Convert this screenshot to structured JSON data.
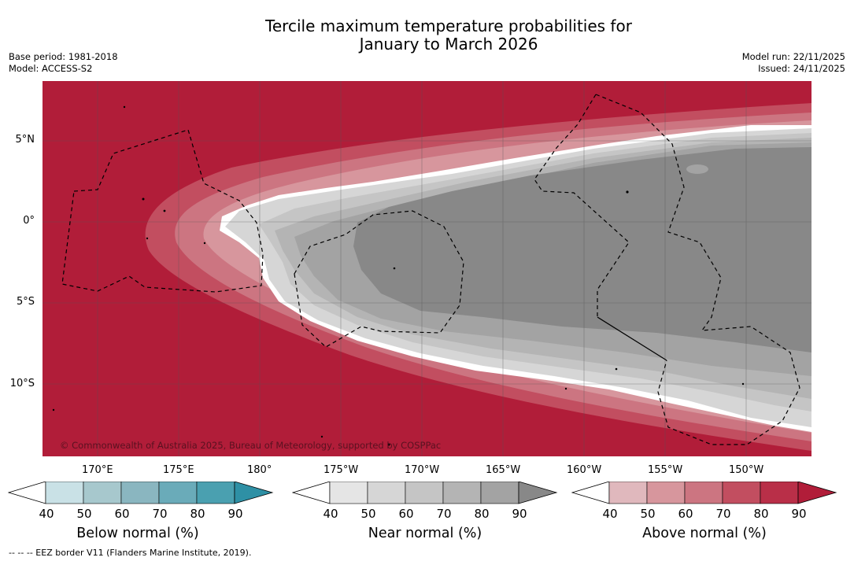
{
  "title": {
    "line1": "Tercile maximum temperature probabilities for",
    "line2": "January to March 2026"
  },
  "meta_left": {
    "base_period": "Base period: 1981-2018",
    "model": "Model: ACCESS-S2"
  },
  "meta_right": {
    "model_run": "Model run: 22/11/2025",
    "issued": "Issued: 24/11/2025"
  },
  "map": {
    "copyright": "© Commonwealth of Australia 2025, Bureau of Meteorology, supported by COSPPac",
    "lat_labels": [
      "5°N",
      "0°",
      "5°S",
      "10°S"
    ],
    "lon_labels": [
      "170°E",
      "175°E",
      "180°",
      "175°W",
      "170°W",
      "165°W",
      "160°W",
      "155°W",
      "150°W"
    ],
    "colors": {
      "above_90": "#b11d39",
      "near_80_90": "#888888",
      "near_70_80": "#a3a3a3",
      "near_60_70": "#b4b4b4",
      "near_50_60": "#c5c5c5",
      "near_40_50": "#d6d6d6"
    }
  },
  "colorbars": {
    "ticks": [
      "40",
      "50",
      "60",
      "70",
      "80",
      "90"
    ],
    "below": {
      "title": "Below normal (%)",
      "colors": [
        "#c9e1e6",
        "#a7c8cd",
        "#8ab6c0",
        "#6aabb9",
        "#4aa0b0",
        "#2e90a5"
      ]
    },
    "near": {
      "title": "Near normal (%)",
      "colors": [
        "#e5e5e5",
        "#d6d6d6",
        "#c5c5c5",
        "#b4b4b4",
        "#a3a3a3",
        "#888888"
      ]
    },
    "above": {
      "title": "Above normal (%)",
      "colors": [
        "#e0b8bd",
        "#d7969d",
        "#cc7581",
        "#c24e60",
        "#b92f48",
        "#b11d39"
      ]
    }
  },
  "footer": "-- -- -- EEZ border V11 (Flanders Marine Institute, 2019)."
}
